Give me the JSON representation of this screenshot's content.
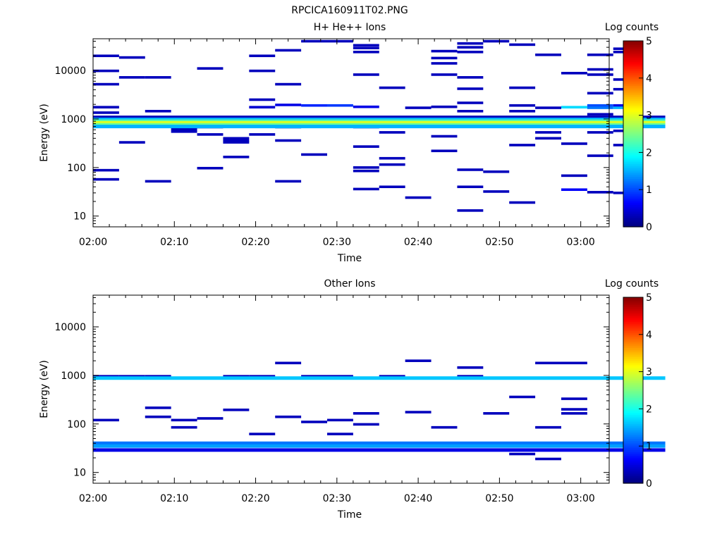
{
  "page_title": "RPCICA160911T02.PNG",
  "chart_data": [
    {
      "type": "heatmap",
      "title": "H+ He++ Ions",
      "xlabel": "Time",
      "ylabel": "Energy (eV)",
      "yscale": "log",
      "ylim": [
        6,
        45000
      ],
      "xlim_minutes": [
        0,
        63.5
      ],
      "xticks": [
        "02:00",
        "02:10",
        "02:20",
        "02:30",
        "02:40",
        "02:50",
        "03:00"
      ],
      "yticks": [
        "10",
        "100",
        "1000",
        "10000"
      ],
      "colorbar": {
        "label": "Log counts",
        "range": [
          0,
          5
        ],
        "ticks": [
          "0",
          "1",
          "2",
          "3",
          "4",
          "5"
        ]
      },
      "time_bins_start": "02:00",
      "time_bin_minutes": 3.2,
      "num_bins": 22,
      "cells": [
        [
          0,
          20000,
          0.3
        ],
        [
          0,
          9800,
          0.3
        ],
        [
          0,
          5200,
          0.3
        ],
        [
          0,
          1750,
          0.3
        ],
        [
          0,
          1350,
          0.3
        ],
        [
          0,
          88,
          0.3
        ],
        [
          0,
          57,
          0.3
        ],
        [
          0,
          700,
          0.3
        ],
        [
          1,
          18500,
          0.3
        ],
        [
          1,
          7200,
          0.3
        ],
        [
          1,
          330,
          0.3
        ],
        [
          2,
          7200,
          0.3
        ],
        [
          2,
          1450,
          0.3
        ],
        [
          2,
          52,
          0.3
        ],
        [
          3,
          700,
          0.3
        ],
        [
          3,
          550,
          0.3
        ],
        [
          3,
          620,
          0.3
        ],
        [
          4,
          11000,
          0.3
        ],
        [
          4,
          480,
          0.3
        ],
        [
          4,
          97,
          0.3
        ],
        [
          4,
          680,
          0.3
        ],
        [
          5,
          360,
          0.3
        ],
        [
          5,
          330,
          0.3
        ],
        [
          5,
          400,
          0.3
        ],
        [
          5,
          165,
          0.3
        ],
        [
          6,
          20000,
          0.3
        ],
        [
          6,
          9800,
          0.3
        ],
        [
          6,
          2500,
          0.3
        ],
        [
          6,
          1750,
          0.4
        ],
        [
          6,
          480,
          0.3
        ],
        [
          7,
          26000,
          0.3
        ],
        [
          7,
          5200,
          0.3
        ],
        [
          7,
          1950,
          0.5
        ],
        [
          7,
          680,
          0.3
        ],
        [
          7,
          360,
          0.3
        ],
        [
          7,
          52,
          0.3
        ],
        [
          8,
          40000,
          0.3
        ],
        [
          8,
          1900,
          0.8
        ],
        [
          8,
          185,
          0.3
        ],
        [
          9,
          40000,
          0.3
        ],
        [
          9,
          1900,
          0.9
        ],
        [
          10,
          33000,
          0.3
        ],
        [
          10,
          29000,
          0.3
        ],
        [
          10,
          24000,
          0.3
        ],
        [
          10,
          8200,
          0.3
        ],
        [
          10,
          1780,
          0.5
        ],
        [
          10,
          680,
          0.3
        ],
        [
          10,
          270,
          0.3
        ],
        [
          10,
          100,
          0.3
        ],
        [
          10,
          85,
          0.3
        ],
        [
          10,
          36,
          0.3
        ],
        [
          11,
          4400,
          0.3
        ],
        [
          11,
          530,
          0.3
        ],
        [
          11,
          155,
          0.3
        ],
        [
          11,
          115,
          0.3
        ],
        [
          11,
          40,
          0.3
        ],
        [
          12,
          1700,
          0.3
        ],
        [
          12,
          24,
          0.3
        ],
        [
          13,
          25000,
          0.3
        ],
        [
          13,
          18000,
          0.3
        ],
        [
          13,
          14000,
          0.3
        ],
        [
          13,
          8200,
          0.3
        ],
        [
          13,
          1780,
          0.3
        ],
        [
          13,
          440,
          0.3
        ],
        [
          13,
          220,
          0.3
        ],
        [
          14,
          36000,
          0.3
        ],
        [
          14,
          30000,
          0.3
        ],
        [
          14,
          24000,
          0.3
        ],
        [
          14,
          7200,
          0.3
        ],
        [
          14,
          4200,
          0.3
        ],
        [
          14,
          2150,
          0.3
        ],
        [
          14,
          1450,
          0.3
        ],
        [
          14,
          90,
          0.3
        ],
        [
          14,
          40,
          0.3
        ],
        [
          14,
          13,
          0.3
        ],
        [
          15,
          40000,
          0.3
        ],
        [
          15,
          82,
          0.3
        ],
        [
          15,
          32,
          0.3
        ],
        [
          16,
          34000,
          0.3
        ],
        [
          16,
          4400,
          0.3
        ],
        [
          16,
          1900,
          0.3
        ],
        [
          16,
          1450,
          0.3
        ],
        [
          16,
          290,
          0.3
        ],
        [
          16,
          19,
          0.3
        ],
        [
          17,
          21000,
          0.3
        ],
        [
          17,
          1700,
          0.3
        ],
        [
          17,
          530,
          0.3
        ],
        [
          17,
          400,
          0.3
        ],
        [
          18,
          8800,
          0.3
        ],
        [
          18,
          1750,
          1.7
        ],
        [
          18,
          310,
          0.3
        ],
        [
          18,
          68,
          0.3
        ],
        [
          18,
          35,
          0.6
        ],
        [
          19,
          21000,
          0.3
        ],
        [
          19,
          10500,
          0.3
        ],
        [
          19,
          8200,
          0.3
        ],
        [
          19,
          3400,
          0.3
        ],
        [
          19,
          1900,
          1.0
        ],
        [
          19,
          1700,
          1.2
        ],
        [
          19,
          1250,
          0.3
        ],
        [
          19,
          530,
          0.3
        ],
        [
          19,
          175,
          0.3
        ],
        [
          19,
          31,
          0.3
        ],
        [
          20,
          28000,
          0.3
        ],
        [
          20,
          24000,
          0.3
        ],
        [
          20,
          6500,
          0.3
        ],
        [
          20,
          4100,
          0.3
        ],
        [
          20,
          1900,
          0.5
        ],
        [
          20,
          1700,
          1.5
        ],
        [
          20,
          570,
          0.3
        ],
        [
          20,
          290,
          0.3
        ],
        [
          20,
          30,
          0.3
        ]
      ],
      "continuous_bands": [
        [
          1080,
          0.3
        ],
        [
          980,
          1.5
        ],
        [
          900,
          2.3
        ],
        [
          830,
          3.0
        ],
        [
          760,
          2.4
        ],
        [
          700,
          1.5
        ]
      ]
    },
    {
      "type": "heatmap",
      "title": "Other Ions",
      "xlabel": "Time",
      "ylabel": "Energy (eV)",
      "yscale": "log",
      "ylim": [
        6,
        45000
      ],
      "xlim_minutes": [
        0,
        63.5
      ],
      "xticks": [
        "02:00",
        "02:10",
        "02:20",
        "02:30",
        "02:40",
        "02:50",
        "03:00"
      ],
      "yticks": [
        "10",
        "100",
        "1000",
        "10000"
      ],
      "colorbar": {
        "label": "Log counts",
        "range": [
          0,
          5
        ],
        "ticks": [
          "0",
          "1",
          "2",
          "3",
          "4",
          "5"
        ]
      },
      "time_bins_start": "02:00",
      "time_bin_minutes": 3.2,
      "num_bins": 22,
      "cells": [
        [
          0,
          960,
          0.3
        ],
        [
          0,
          120,
          0.3
        ],
        [
          1,
          960,
          0.3
        ],
        [
          2,
          960,
          0.3
        ],
        [
          2,
          215,
          0.3
        ],
        [
          2,
          140,
          0.3
        ],
        [
          2,
          40,
          0.5
        ],
        [
          3,
          120,
          0.3
        ],
        [
          3,
          85,
          0.3
        ],
        [
          4,
          130,
          0.3
        ],
        [
          5,
          195,
          0.3
        ],
        [
          5,
          960,
          0.3
        ],
        [
          6,
          960,
          0.3
        ],
        [
          6,
          62,
          0.3
        ],
        [
          7,
          1800,
          0.3
        ],
        [
          7,
          140,
          0.3
        ],
        [
          8,
          110,
          0.3
        ],
        [
          8,
          960,
          0.3
        ],
        [
          9,
          120,
          0.3
        ],
        [
          9,
          62,
          0.3
        ],
        [
          9,
          960,
          0.3
        ],
        [
          10,
          165,
          0.3
        ],
        [
          10,
          98,
          0.3
        ],
        [
          11,
          960,
          0.3
        ],
        [
          12,
          2000,
          0.3
        ],
        [
          12,
          175,
          0.3
        ],
        [
          13,
          85,
          0.3
        ],
        [
          14,
          1450,
          0.3
        ],
        [
          14,
          960,
          0.3
        ],
        [
          15,
          165,
          0.3
        ],
        [
          16,
          360,
          0.3
        ],
        [
          16,
          24,
          0.3
        ],
        [
          17,
          1800,
          0.3
        ],
        [
          17,
          85,
          0.3
        ],
        [
          17,
          19,
          0.3
        ],
        [
          18,
          1800,
          0.3
        ],
        [
          18,
          330,
          0.3
        ],
        [
          18,
          200,
          0.3
        ],
        [
          18,
          165,
          0.3
        ]
      ],
      "continuous_bands": [
        [
          880,
          1.6
        ],
        [
          40,
          1.2
        ],
        [
          35,
          1.4
        ],
        [
          29,
          0.5
        ]
      ]
    }
  ]
}
